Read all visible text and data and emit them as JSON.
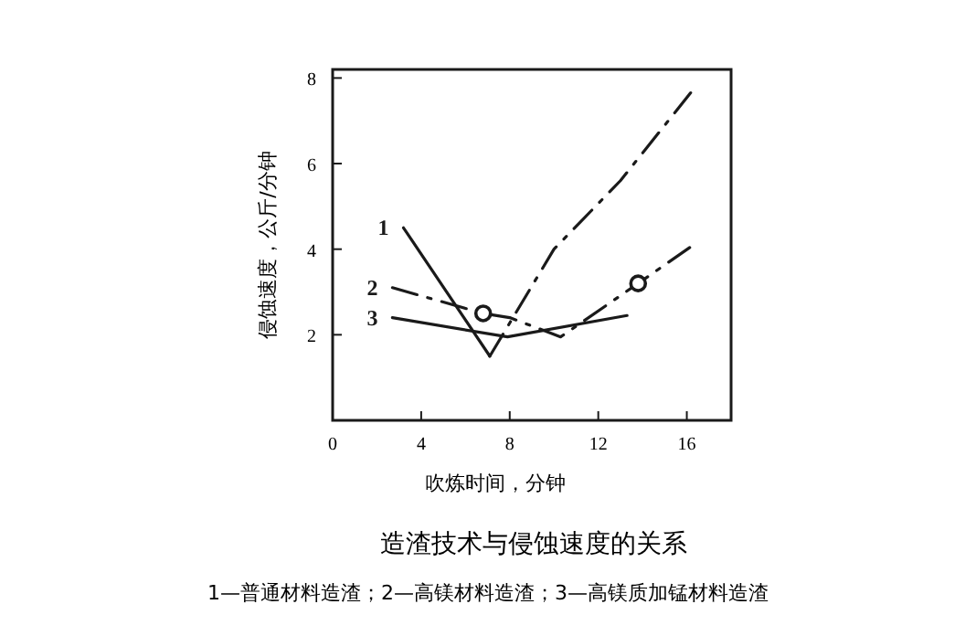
{
  "chart_data": {
    "type": "line",
    "title": "造渣技术与侵蚀速度的关系",
    "xlabel": "吹炼时间，分钟",
    "ylabel": "侵蚀速度，公斤/分钟",
    "annotations": [
      "1—普通材料造渣；2—高镁材料造渣；3—高镁质加锰材料造渣"
    ],
    "xlim": [
      0,
      18
    ],
    "ylim": [
      0,
      8.2
    ],
    "xticks": [
      0,
      4,
      8,
      12,
      16
    ],
    "yticks": [
      2,
      4,
      6,
      8
    ],
    "grid": false,
    "color": "#1a1a1a",
    "series": [
      {
        "name": "1",
        "line_style": "solid",
        "x": [
          3.2,
          7.1
        ],
        "values": [
          4.5,
          1.5
        ]
      },
      {
        "line_style": "dashed",
        "x": [
          7.1,
          10,
          13,
          16.4
        ],
        "values": [
          1.5,
          4,
          5.6,
          7.8
        ]
      },
      {
        "name": "2",
        "line_style": "dashed",
        "x": [
          2.7,
          6.8,
          8,
          10.3,
          13.8,
          16.3
        ],
        "values": [
          3.1,
          2.5,
          2.4,
          1.95,
          3.2,
          4.1
        ]
      },
      {
        "name": "3",
        "line_style": "solid",
        "x": [
          2.7,
          7.9,
          13.3
        ],
        "values": [
          2.4,
          1.95,
          2.45
        ]
      },
      {
        "type": "scatter",
        "marker": "circle",
        "x": [
          6.8,
          13.8
        ],
        "values": [
          2.5,
          3.2
        ]
      }
    ]
  }
}
